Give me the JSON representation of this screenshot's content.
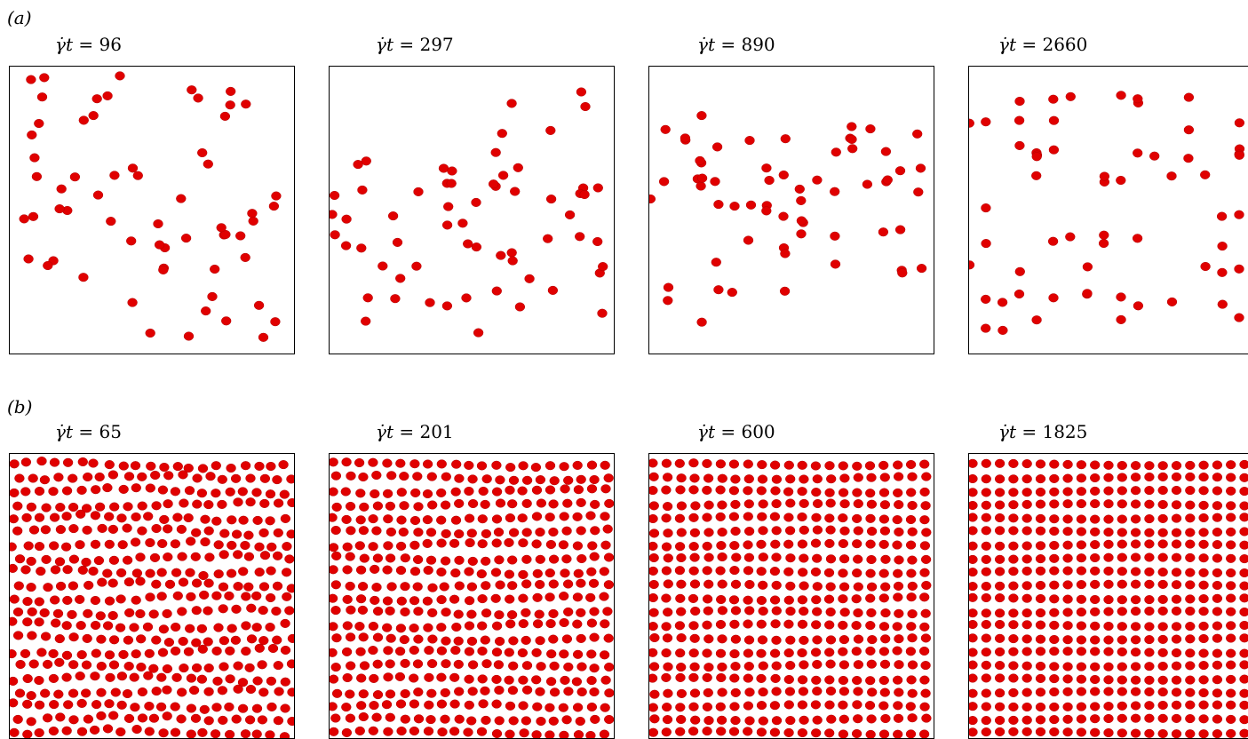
{
  "figure": {
    "rows": [
      {
        "label": "(a)",
        "density": "dilute",
        "particle_color": "#e00000",
        "panels": [
          {
            "symbol": "γ̇t",
            "equals": "=",
            "value": "96",
            "ordering": 0.0
          },
          {
            "symbol": "γ̇t",
            "equals": "=",
            "value": "297",
            "ordering": 0.35
          },
          {
            "symbol": "γ̇t",
            "equals": "=",
            "value": "890",
            "ordering": 0.7
          },
          {
            "symbol": "γ̇t",
            "equals": "=",
            "value": "2660",
            "ordering": 0.95
          }
        ]
      },
      {
        "label": "(b)",
        "density": "dense",
        "particle_color": "#e00000",
        "panels": [
          {
            "symbol": "γ̇t",
            "equals": "=",
            "value": "65",
            "ordering": 0.15
          },
          {
            "symbol": "γ̇t",
            "equals": "=",
            "value": "201",
            "ordering": 0.5
          },
          {
            "symbol": "γ̇t",
            "equals": "=",
            "value": "600",
            "ordering": 0.8
          },
          {
            "symbol": "γ̇t",
            "equals": "=",
            "value": "1825",
            "ordering": 1.0
          }
        ]
      }
    ]
  }
}
